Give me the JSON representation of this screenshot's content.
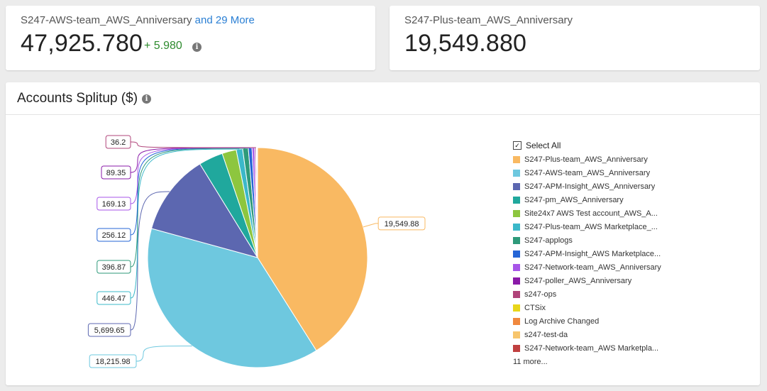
{
  "cards": [
    {
      "title": "S247-AWS-team_AWS_Anniversary",
      "more": "and 29 More",
      "value": "47,925.780",
      "delta": "+ 5.980"
    },
    {
      "title": "S247-Plus-team_AWS_Anniversary",
      "value": "19,549.880"
    }
  ],
  "panel": {
    "title": "Accounts Splitup ($)"
  },
  "legend": {
    "select_all": "Select All",
    "more": "11 more...",
    "items": [
      {
        "label": "S247-Plus-team_AWS_Anniversary",
        "color": "#f9b962"
      },
      {
        "label": "S247-AWS-team_AWS_Anniversary",
        "color": "#6ec8df"
      },
      {
        "label": "S247-APM-Insight_AWS_Anniversary",
        "color": "#5c67b0"
      },
      {
        "label": "S247-pm_AWS_Anniversary",
        "color": "#20a89d"
      },
      {
        "label": "Site24x7 AWS Test account_AWS_A...",
        "color": "#8dc63f"
      },
      {
        "label": "S247-Plus-team_AWS Marketplace_...",
        "color": "#3bb8c9"
      },
      {
        "label": "S247-applogs",
        "color": "#2e9a7a"
      },
      {
        "label": "S247-APM-Insight_AWS Marketplace...",
        "color": "#2565d6"
      },
      {
        "label": "S247-Network-team_AWS_Anniversary",
        "color": "#a755e8"
      },
      {
        "label": "S247-poller_AWS_Anniversary",
        "color": "#8a1aa8"
      },
      {
        "label": "s247-ops",
        "color": "#b0447a"
      },
      {
        "label": "CTSix",
        "color": "#e8d61a"
      },
      {
        "label": "Log Archive Changed",
        "color": "#f0883e"
      },
      {
        "label": "s247-test-da",
        "color": "#f7c56c"
      },
      {
        "label": "S247-Network-team_AWS Marketpla...",
        "color": "#c04040"
      }
    ]
  },
  "chart_data": {
    "type": "pie",
    "title": "Accounts Splitup ($)",
    "legend_position": "right",
    "slices": [
      {
        "name": "S247-Plus-team_AWS_Anniversary",
        "value": 19549.88,
        "label": "19,549.88",
        "color": "#f9b962"
      },
      {
        "name": "S247-AWS-team_AWS_Anniversary",
        "value": 18215.98,
        "label": "18,215.98",
        "color": "#6ec8df"
      },
      {
        "name": "S247-APM-Insight_AWS_Anniversary",
        "value": 5699.65,
        "label": "5,699.65",
        "color": "#5c67b0"
      },
      {
        "name": "S247-pm_AWS_Anniversary",
        "value": 1700,
        "label": "",
        "color": "#20a89d"
      },
      {
        "name": "Site24x7 AWS Test account_AWS_A...",
        "value": 1000,
        "label": "",
        "color": "#8dc63f"
      },
      {
        "name": "S247-Plus-team_AWS Marketplace_...",
        "value": 446.47,
        "label": "446.47",
        "color": "#3bb8c9"
      },
      {
        "name": "S247-applogs",
        "value": 396.87,
        "label": "396.87",
        "color": "#2e9a7a"
      },
      {
        "name": "S247-APM-Insight_AWS Marketplace...",
        "value": 256.12,
        "label": "256.12",
        "color": "#2565d6"
      },
      {
        "name": "S247-Network-team_AWS_Anniversary",
        "value": 169.13,
        "label": "169.13",
        "color": "#a755e8"
      },
      {
        "name": "S247-poller_AWS_Anniversary",
        "value": 89.35,
        "label": "89.35",
        "color": "#8a1aa8"
      },
      {
        "name": "s247-ops",
        "value": 36.2,
        "label": "36.2",
        "color": "#b0447a"
      },
      {
        "name": "CTSix",
        "value": 30,
        "label": "",
        "color": "#e8d61a"
      },
      {
        "name": "Log Archive Changed",
        "value": 25,
        "label": "",
        "color": "#f0883e"
      },
      {
        "name": "s247-test-da",
        "value": 20,
        "label": "",
        "color": "#f7c56c"
      },
      {
        "name": "S247-Network-team_AWS Marketpla...",
        "value": 15,
        "label": "",
        "color": "#c04040"
      }
    ]
  }
}
